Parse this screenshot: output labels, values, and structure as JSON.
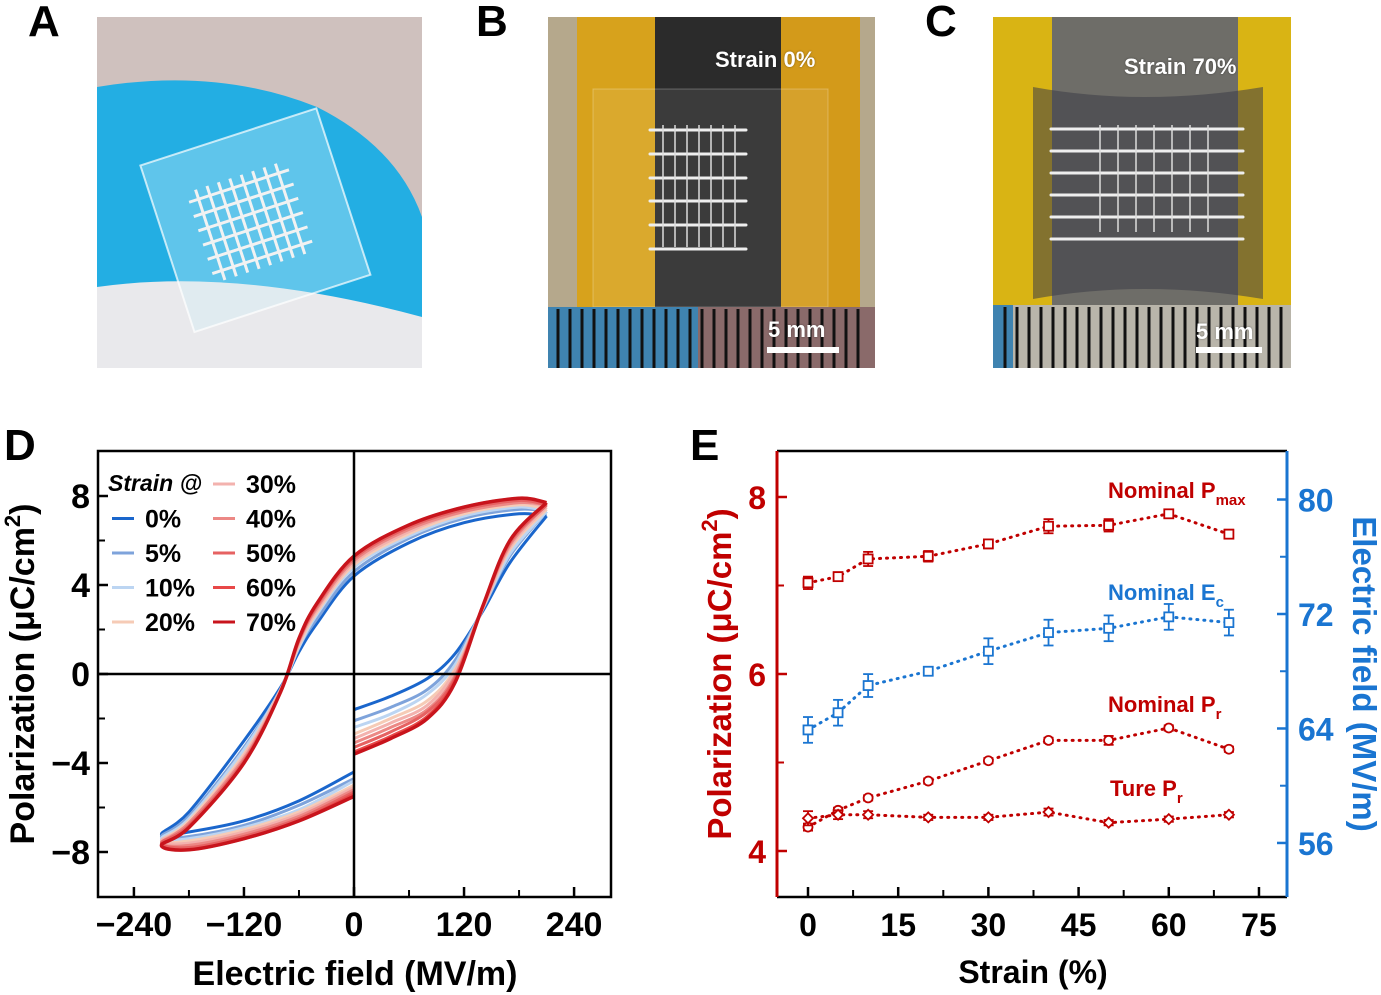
{
  "panels": {
    "a": {
      "letter": "A"
    },
    "b": {
      "letter": "B",
      "caption": "Strain 0%",
      "scale_bar": "5 mm"
    },
    "c": {
      "letter": "C",
      "caption": "Strain 70%",
      "scale_bar": "5 mm"
    },
    "d": {
      "letter": "D"
    },
    "e": {
      "letter": "E"
    }
  },
  "chart_data": [
    {
      "type": "line",
      "panel": "D",
      "xlabel": "Electric field (MV/m)",
      "ylabel": "Polarization (μC/cm",
      "ylabel_sup": "2",
      "ylabel_end": ")",
      "xlim": [
        -280,
        280
      ],
      "ylim": [
        -10,
        10
      ],
      "xticks": [
        "−240",
        "−120",
        "0",
        "120",
        "240"
      ],
      "xtick_values": [
        -240,
        -120,
        0,
        120,
        240
      ],
      "yticks": [
        "8",
        "4",
        "0",
        "−4",
        "−8"
      ],
      "ytick_values": [
        8,
        4,
        0,
        -4,
        -8
      ],
      "grid": false,
      "legend_title": "Strain @",
      "legend_position": "top-left",
      "upper_branch_E": [
        210,
        180,
        120,
        60,
        0,
        -40,
        -60,
        -80,
        -120,
        -180,
        -210
      ],
      "lower_left_E": [
        -210,
        -180,
        -120,
        -60,
        0
      ],
      "lower_right_E": [
        0,
        40,
        80,
        110,
        140,
        170,
        210
      ],
      "series": [
        {
          "name": "0%",
          "color": "#1a66cc",
          "upper": [
            7.1,
            7.2,
            6.8,
            5.9,
            4.4,
            2.3,
            1.0,
            -0.6,
            -3.0,
            -6.2,
            -7.2
          ],
          "lower_left": [
            -7.2,
            -7.1,
            -6.6,
            -5.7,
            -4.4
          ],
          "lower_right": [
            -1.6,
            -1.0,
            -0.2,
            0.9,
            2.8,
            5.0,
            7.1
          ]
        },
        {
          "name": "5%",
          "color": "#7ea3db",
          "upper": [
            7.3,
            7.4,
            7.0,
            6.1,
            4.6,
            2.5,
            1.2,
            -0.7,
            -3.3,
            -6.4,
            -7.3
          ],
          "lower_left": [
            -7.3,
            -7.3,
            -6.8,
            -5.9,
            -4.7
          ],
          "lower_right": [
            -2.1,
            -1.5,
            -0.7,
            0.6,
            2.9,
            5.3,
            7.3
          ]
        },
        {
          "name": "10%",
          "color": "#bcd5f2",
          "upper": [
            7.3,
            7.5,
            7.1,
            6.2,
            4.8,
            2.7,
            1.2,
            -0.7,
            -3.4,
            -6.5,
            -7.4
          ],
          "lower_left": [
            -7.4,
            -7.4,
            -6.9,
            -6.1,
            -4.8
          ],
          "lower_right": [
            -2.4,
            -1.8,
            -0.9,
            0.4,
            2.9,
            5.4,
            7.3
          ]
        },
        {
          "name": "20%",
          "color": "#f6cbb6",
          "upper": [
            7.4,
            7.6,
            7.2,
            6.3,
            4.9,
            2.8,
            1.3,
            -0.7,
            -3.6,
            -6.6,
            -7.5
          ],
          "lower_left": [
            -7.5,
            -7.5,
            -7.0,
            -6.2,
            -5.0
          ],
          "lower_right": [
            -2.7,
            -2.0,
            -1.2,
            0.2,
            2.9,
            5.6,
            7.4
          ]
        },
        {
          "name": "30%",
          "color": "#f3b2ae",
          "upper": [
            7.5,
            7.7,
            7.3,
            6.4,
            5.0,
            2.9,
            1.4,
            -0.7,
            -3.7,
            -6.7,
            -7.5
          ],
          "lower_left": [
            -7.5,
            -7.6,
            -7.1,
            -6.3,
            -5.1
          ],
          "lower_right": [
            -2.9,
            -2.2,
            -1.4,
            0.1,
            2.9,
            5.7,
            7.5
          ]
        },
        {
          "name": "40%",
          "color": "#ec8885",
          "upper": [
            7.6,
            7.7,
            7.3,
            6.5,
            5.1,
            3.0,
            1.5,
            -0.8,
            -3.8,
            -6.7,
            -7.6
          ],
          "lower_left": [
            -7.6,
            -7.7,
            -7.2,
            -6.4,
            -5.2
          ],
          "lower_right": [
            -3.1,
            -2.4,
            -1.6,
            -0.1,
            3.0,
            5.8,
            7.6
          ]
        },
        {
          "name": "50%",
          "color": "#e66262",
          "upper": [
            7.6,
            7.8,
            7.4,
            6.6,
            5.2,
            3.1,
            1.5,
            -0.8,
            -3.9,
            -6.8,
            -7.6
          ],
          "lower_left": [
            -7.6,
            -7.8,
            -7.3,
            -6.5,
            -5.3
          ],
          "lower_right": [
            -3.3,
            -2.6,
            -1.7,
            -0.2,
            3.0,
            5.9,
            7.6
          ]
        },
        {
          "name": "60%",
          "color": "#e84848",
          "upper": [
            7.7,
            7.9,
            7.5,
            6.7,
            5.3,
            3.2,
            1.6,
            -0.8,
            -4.0,
            -6.9,
            -7.7
          ],
          "lower_left": [
            -7.7,
            -7.9,
            -7.4,
            -6.6,
            -5.4
          ],
          "lower_right": [
            -3.5,
            -2.8,
            -1.9,
            -0.3,
            3.0,
            6.0,
            7.7
          ]
        },
        {
          "name": "70%",
          "color": "#c8141c",
          "upper": [
            7.7,
            7.9,
            7.5,
            6.7,
            5.3,
            3.2,
            1.6,
            -0.8,
            -4.0,
            -6.9,
            -7.7
          ],
          "lower_left": [
            -7.7,
            -7.9,
            -7.4,
            -6.6,
            -5.5
          ],
          "lower_right": [
            -3.6,
            -2.9,
            -2.0,
            -0.4,
            3.0,
            6.0,
            7.7
          ]
        }
      ]
    },
    {
      "type": "line",
      "panel": "E",
      "xlabel": "Strain (%)",
      "ylabel_left": "Polarization (μC/cm",
      "ylabel_left_sup": "2",
      "ylabel_left_end": ")",
      "ylabel_right": "Electric field (MV/m)",
      "left_color": "#c00000",
      "right_color": "#1a75d1",
      "xlim": [
        -5,
        80
      ],
      "ylim_left": [
        3.5,
        8.5
      ],
      "ylim_right": [
        52.2,
        83.4
      ],
      "xticks": [
        "0",
        "15",
        "30",
        "45",
        "60",
        "75"
      ],
      "xtick_values": [
        0,
        15,
        30,
        45,
        60,
        75
      ],
      "yticks_left": [
        "8",
        "6",
        "4"
      ],
      "ytick_left_values": [
        8,
        6,
        4
      ],
      "yticks_right": [
        "80",
        "72",
        "64",
        "56"
      ],
      "ytick_right_values": [
        80,
        72,
        64,
        56
      ],
      "grid": false,
      "x": [
        0,
        5,
        10,
        20,
        30,
        40,
        50,
        60,
        70
      ],
      "series": [
        {
          "label": "Nominal P",
          "label_sub": "max",
          "axis": "left",
          "marker": "square",
          "color": "#c00000",
          "values": [
            7.03,
            7.1,
            7.3,
            7.33,
            7.47,
            7.67,
            7.68,
            7.81,
            7.58
          ],
          "errors": [
            0.07,
            0.05,
            0.08,
            0.06,
            0.05,
            0.08,
            0.07,
            0.03,
            0.05
          ]
        },
        {
          "label": "Nominal E",
          "label_sub": "c",
          "axis": "right",
          "marker": "square",
          "color": "#1a75d1",
          "values": [
            63.9,
            65.1,
            67.0,
            68.0,
            69.4,
            70.7,
            71.0,
            71.8,
            71.4
          ],
          "errors": [
            0.9,
            0.9,
            0.8,
            0.3,
            0.9,
            0.9,
            0.9,
            0.9,
            0.9
          ]
        },
        {
          "label": "Nominal P",
          "label_sub": "r",
          "axis": "left",
          "marker": "circle",
          "color": "#c00000",
          "values": [
            4.27,
            4.46,
            4.6,
            4.79,
            5.02,
            5.25,
            5.25,
            5.39,
            5.15
          ],
          "errors": [
            0.04,
            0.03,
            0.03,
            0.03,
            0.03,
            0.03,
            0.05,
            0.03,
            0.03
          ]
        },
        {
          "label": "Ture P",
          "label_sub": "r",
          "axis": "left",
          "marker": "diamond",
          "color": "#c00000",
          "values": [
            4.37,
            4.41,
            4.41,
            4.38,
            4.38,
            4.44,
            4.32,
            4.36,
            4.41
          ],
          "errors": [
            0.08,
            0.05,
            0.04,
            0.03,
            0.03,
            0.04,
            0.03,
            0.03,
            0.03
          ]
        }
      ]
    }
  ]
}
